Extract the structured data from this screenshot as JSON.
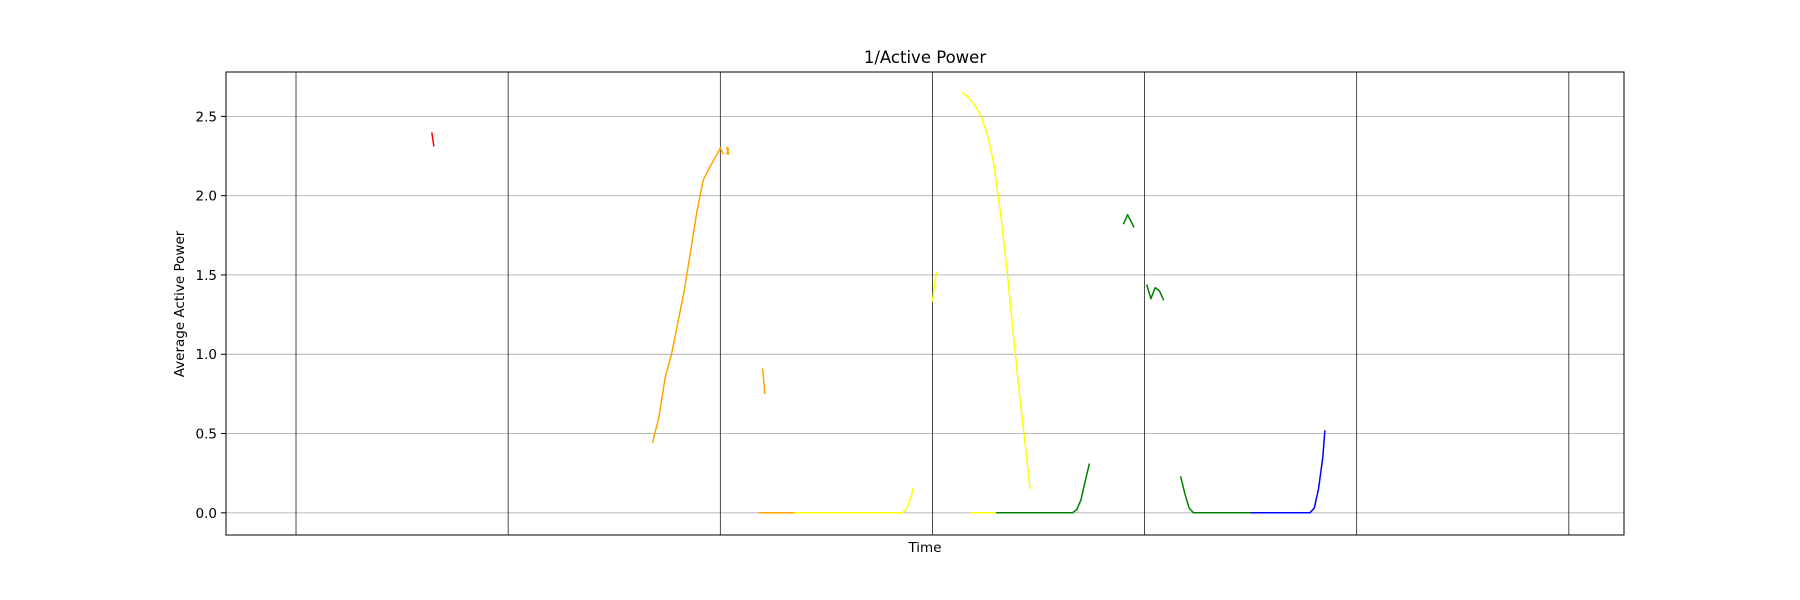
{
  "chart_data": {
    "type": "line",
    "title": "1/Active Power",
    "xlabel": "Time",
    "ylabel": "Average Active Power",
    "ylim": [
      -0.14,
      2.78
    ],
    "xlim": [
      -3.3,
      62.6
    ],
    "yticks": [
      0.0,
      0.5,
      1.0,
      1.5,
      2.0,
      2.5
    ],
    "ytick_labels": [
      "0.0",
      "0.5",
      "1.0",
      "1.5",
      "2.0",
      "2.5"
    ],
    "x_gridlines": [
      0,
      10,
      20,
      30,
      40,
      50,
      60
    ],
    "xtick_labels": [],
    "grid": true,
    "colors": {
      "red": "#ff0000",
      "orange": "#ffa500",
      "yellow": "#ffff00",
      "green": "#008000",
      "blue": "#0000ff",
      "grid_vertical": "#000000",
      "grid_horizontal": "#b0b0b0"
    },
    "series": [
      {
        "color": "red",
        "points": [
          [
            6.4,
            2.4
          ],
          [
            6.5,
            2.31
          ]
        ]
      },
      {
        "color": "orange",
        "points": [
          [
            16.8,
            0.44
          ],
          [
            17.1,
            0.6
          ],
          [
            17.4,
            0.85
          ],
          [
            17.7,
            1.0
          ],
          [
            18.0,
            1.2
          ],
          [
            18.3,
            1.4
          ],
          [
            18.6,
            1.65
          ],
          [
            18.9,
            1.9
          ],
          [
            19.2,
            2.1
          ],
          [
            19.5,
            2.18
          ],
          [
            19.8,
            2.25
          ],
          [
            20.0,
            2.3
          ],
          [
            20.15,
            2.26
          ]
        ]
      },
      {
        "color": "orange",
        "points": [
          [
            20.3,
            2.31
          ],
          [
            20.4,
            2.26
          ]
        ]
      },
      {
        "color": "orange",
        "points": [
          [
            20.3,
            2.26
          ],
          [
            20.4,
            2.3
          ]
        ]
      },
      {
        "color": "orange",
        "points": [
          [
            22.0,
            0.91
          ],
          [
            22.1,
            0.75
          ]
        ]
      },
      {
        "color": "orange",
        "points": [
          [
            21.8,
            0.0
          ],
          [
            22.5,
            0.0
          ],
          [
            23.0,
            0.0
          ],
          [
            23.5,
            0.0
          ]
        ]
      },
      {
        "color": "yellow",
        "points": [
          [
            23.5,
            0.0
          ],
          [
            25.0,
            0.0
          ],
          [
            26.0,
            0.0
          ],
          [
            27.0,
            0.0
          ],
          [
            28.0,
            0.0
          ],
          [
            28.6,
            0.0
          ],
          [
            28.8,
            0.03
          ],
          [
            29.0,
            0.1
          ],
          [
            29.1,
            0.16
          ]
        ]
      },
      {
        "color": "yellow",
        "points": [
          [
            30.0,
            1.33
          ],
          [
            30.1,
            1.44
          ],
          [
            30.2,
            1.52
          ]
        ]
      },
      {
        "color": "yellow",
        "points": [
          [
            31.4,
            2.65
          ],
          [
            31.7,
            2.62
          ],
          [
            32.0,
            2.57
          ],
          [
            32.3,
            2.5
          ],
          [
            32.6,
            2.38
          ],
          [
            32.9,
            2.2
          ],
          [
            33.2,
            1.9
          ],
          [
            33.5,
            1.55
          ],
          [
            33.8,
            1.15
          ],
          [
            34.1,
            0.75
          ],
          [
            34.4,
            0.4
          ],
          [
            34.6,
            0.15
          ]
        ]
      },
      {
        "color": "yellow",
        "points": [
          [
            31.8,
            0.0
          ],
          [
            32.5,
            0.0
          ],
          [
            33.0,
            0.0
          ]
        ]
      },
      {
        "color": "green",
        "points": [
          [
            33.0,
            0.0
          ],
          [
            34.0,
            0.0
          ],
          [
            35.0,
            0.0
          ],
          [
            36.0,
            0.0
          ],
          [
            36.6,
            0.0
          ],
          [
            36.8,
            0.02
          ],
          [
            37.0,
            0.08
          ],
          [
            37.2,
            0.2
          ],
          [
            37.4,
            0.31
          ]
        ]
      },
      {
        "color": "green",
        "points": [
          [
            39.0,
            1.82
          ],
          [
            39.2,
            1.88
          ],
          [
            39.35,
            1.84
          ],
          [
            39.5,
            1.8
          ]
        ]
      },
      {
        "color": "green",
        "points": [
          [
            40.1,
            1.44
          ],
          [
            40.3,
            1.35
          ],
          [
            40.5,
            1.42
          ],
          [
            40.7,
            1.4
          ],
          [
            40.9,
            1.34
          ]
        ]
      },
      {
        "color": "green",
        "points": [
          [
            41.7,
            0.23
          ],
          [
            41.9,
            0.12
          ],
          [
            42.1,
            0.03
          ],
          [
            42.3,
            0.0
          ],
          [
            42.6,
            0.0
          ],
          [
            43.0,
            0.0
          ],
          [
            44.0,
            0.0
          ],
          [
            45.0,
            0.0
          ]
        ]
      },
      {
        "color": "blue",
        "points": [
          [
            45.0,
            0.0
          ],
          [
            46.0,
            0.0
          ],
          [
            47.0,
            0.0
          ],
          [
            47.8,
            0.0
          ],
          [
            48.0,
            0.03
          ],
          [
            48.2,
            0.15
          ],
          [
            48.4,
            0.35
          ],
          [
            48.5,
            0.52
          ]
        ]
      }
    ]
  }
}
